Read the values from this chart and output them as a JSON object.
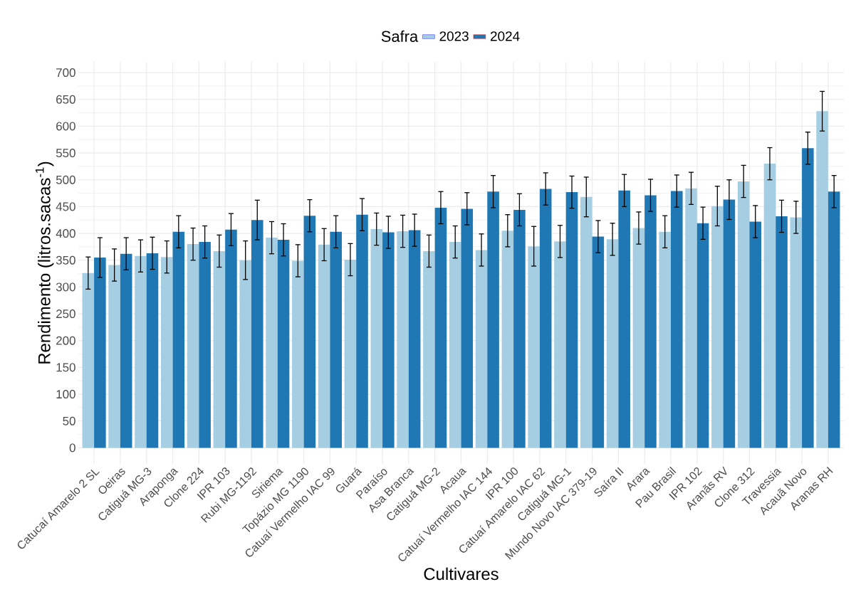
{
  "chart_data": {
    "type": "bar",
    "xlabel": "Cultivares",
    "ylabel": "Rendimento (litros.sacas$^{-1}$)",
    "legend_title": "Safra",
    "categories": [
      "Catucaí Amarelo 2 SL",
      "Oeiras",
      "Catiguá MG-3",
      "Araponga",
      "Clone 224",
      "IPR 103",
      "Rubi MG-1192",
      "Siriema",
      "Topázio MG 1190",
      "Catuaí Vermelho IAC 99",
      "Guará",
      "Paraíso",
      "Asa Branca",
      "Catiguá MG-2",
      "Acaua",
      "Catuaí Vermelho IAC 144",
      "IPR 100",
      "Catuaí Amarelo IAC 62",
      "Catiguá MG-1",
      "Mundo Novo IAC 379-19",
      "Saíra II",
      "Arara",
      "Pau Brasil",
      "IPR 102",
      "Aranãs RV",
      "Clone 312",
      "Travessia",
      "Acauã Novo",
      "Aranas RH"
    ],
    "series": [
      {
        "name": "2023",
        "color": "#a6cee3",
        "values": [
          326,
          341,
          358,
          356,
          380,
          367,
          350,
          392,
          349,
          379,
          351,
          408,
          404,
          367,
          384,
          369,
          405,
          376,
          385,
          468,
          389,
          410,
          403,
          484,
          451,
          497,
          530,
          430,
          628
        ],
        "errors": [
          30,
          30,
          30,
          30,
          30,
          30,
          36,
          30,
          30,
          30,
          30,
          30,
          30,
          30,
          30,
          30,
          30,
          37,
          30,
          37,
          30,
          30,
          30,
          30,
          37,
          30,
          30,
          30,
          37
        ]
      },
      {
        "name": "2024",
        "color": "#1f78b4",
        "values": [
          355,
          362,
          363,
          403,
          384,
          407,
          425,
          388,
          433,
          403,
          435,
          402,
          406,
          448,
          446,
          478,
          444,
          483,
          477,
          394,
          480,
          471,
          479,
          419,
          463,
          422,
          432,
          559,
          478
        ],
        "errors": [
          37,
          30,
          30,
          30,
          30,
          30,
          37,
          30,
          30,
          30,
          30,
          30,
          30,
          30,
          30,
          30,
          30,
          30,
          30,
          30,
          30,
          30,
          30,
          30,
          37,
          30,
          30,
          30,
          30
        ]
      }
    ],
    "ylim": [
      -30,
      720
    ],
    "yticks": [
      0,
      50,
      100,
      150,
      200,
      250,
      300,
      350,
      400,
      450,
      500,
      550,
      600,
      650,
      700
    ],
    "grid": true,
    "legend": "top"
  }
}
